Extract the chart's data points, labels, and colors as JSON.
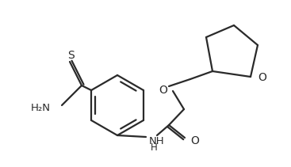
{
  "bg_color": "#ffffff",
  "line_color": "#2a2a2a",
  "line_width": 1.6,
  "font_size": 9.5,
  "figsize": [
    3.67,
    2.11
  ],
  "dpi": 100,
  "S_label": "S",
  "O_label": "O",
  "NH_label": "NH",
  "H2N_label": "H₂N",
  "H_label": "H"
}
